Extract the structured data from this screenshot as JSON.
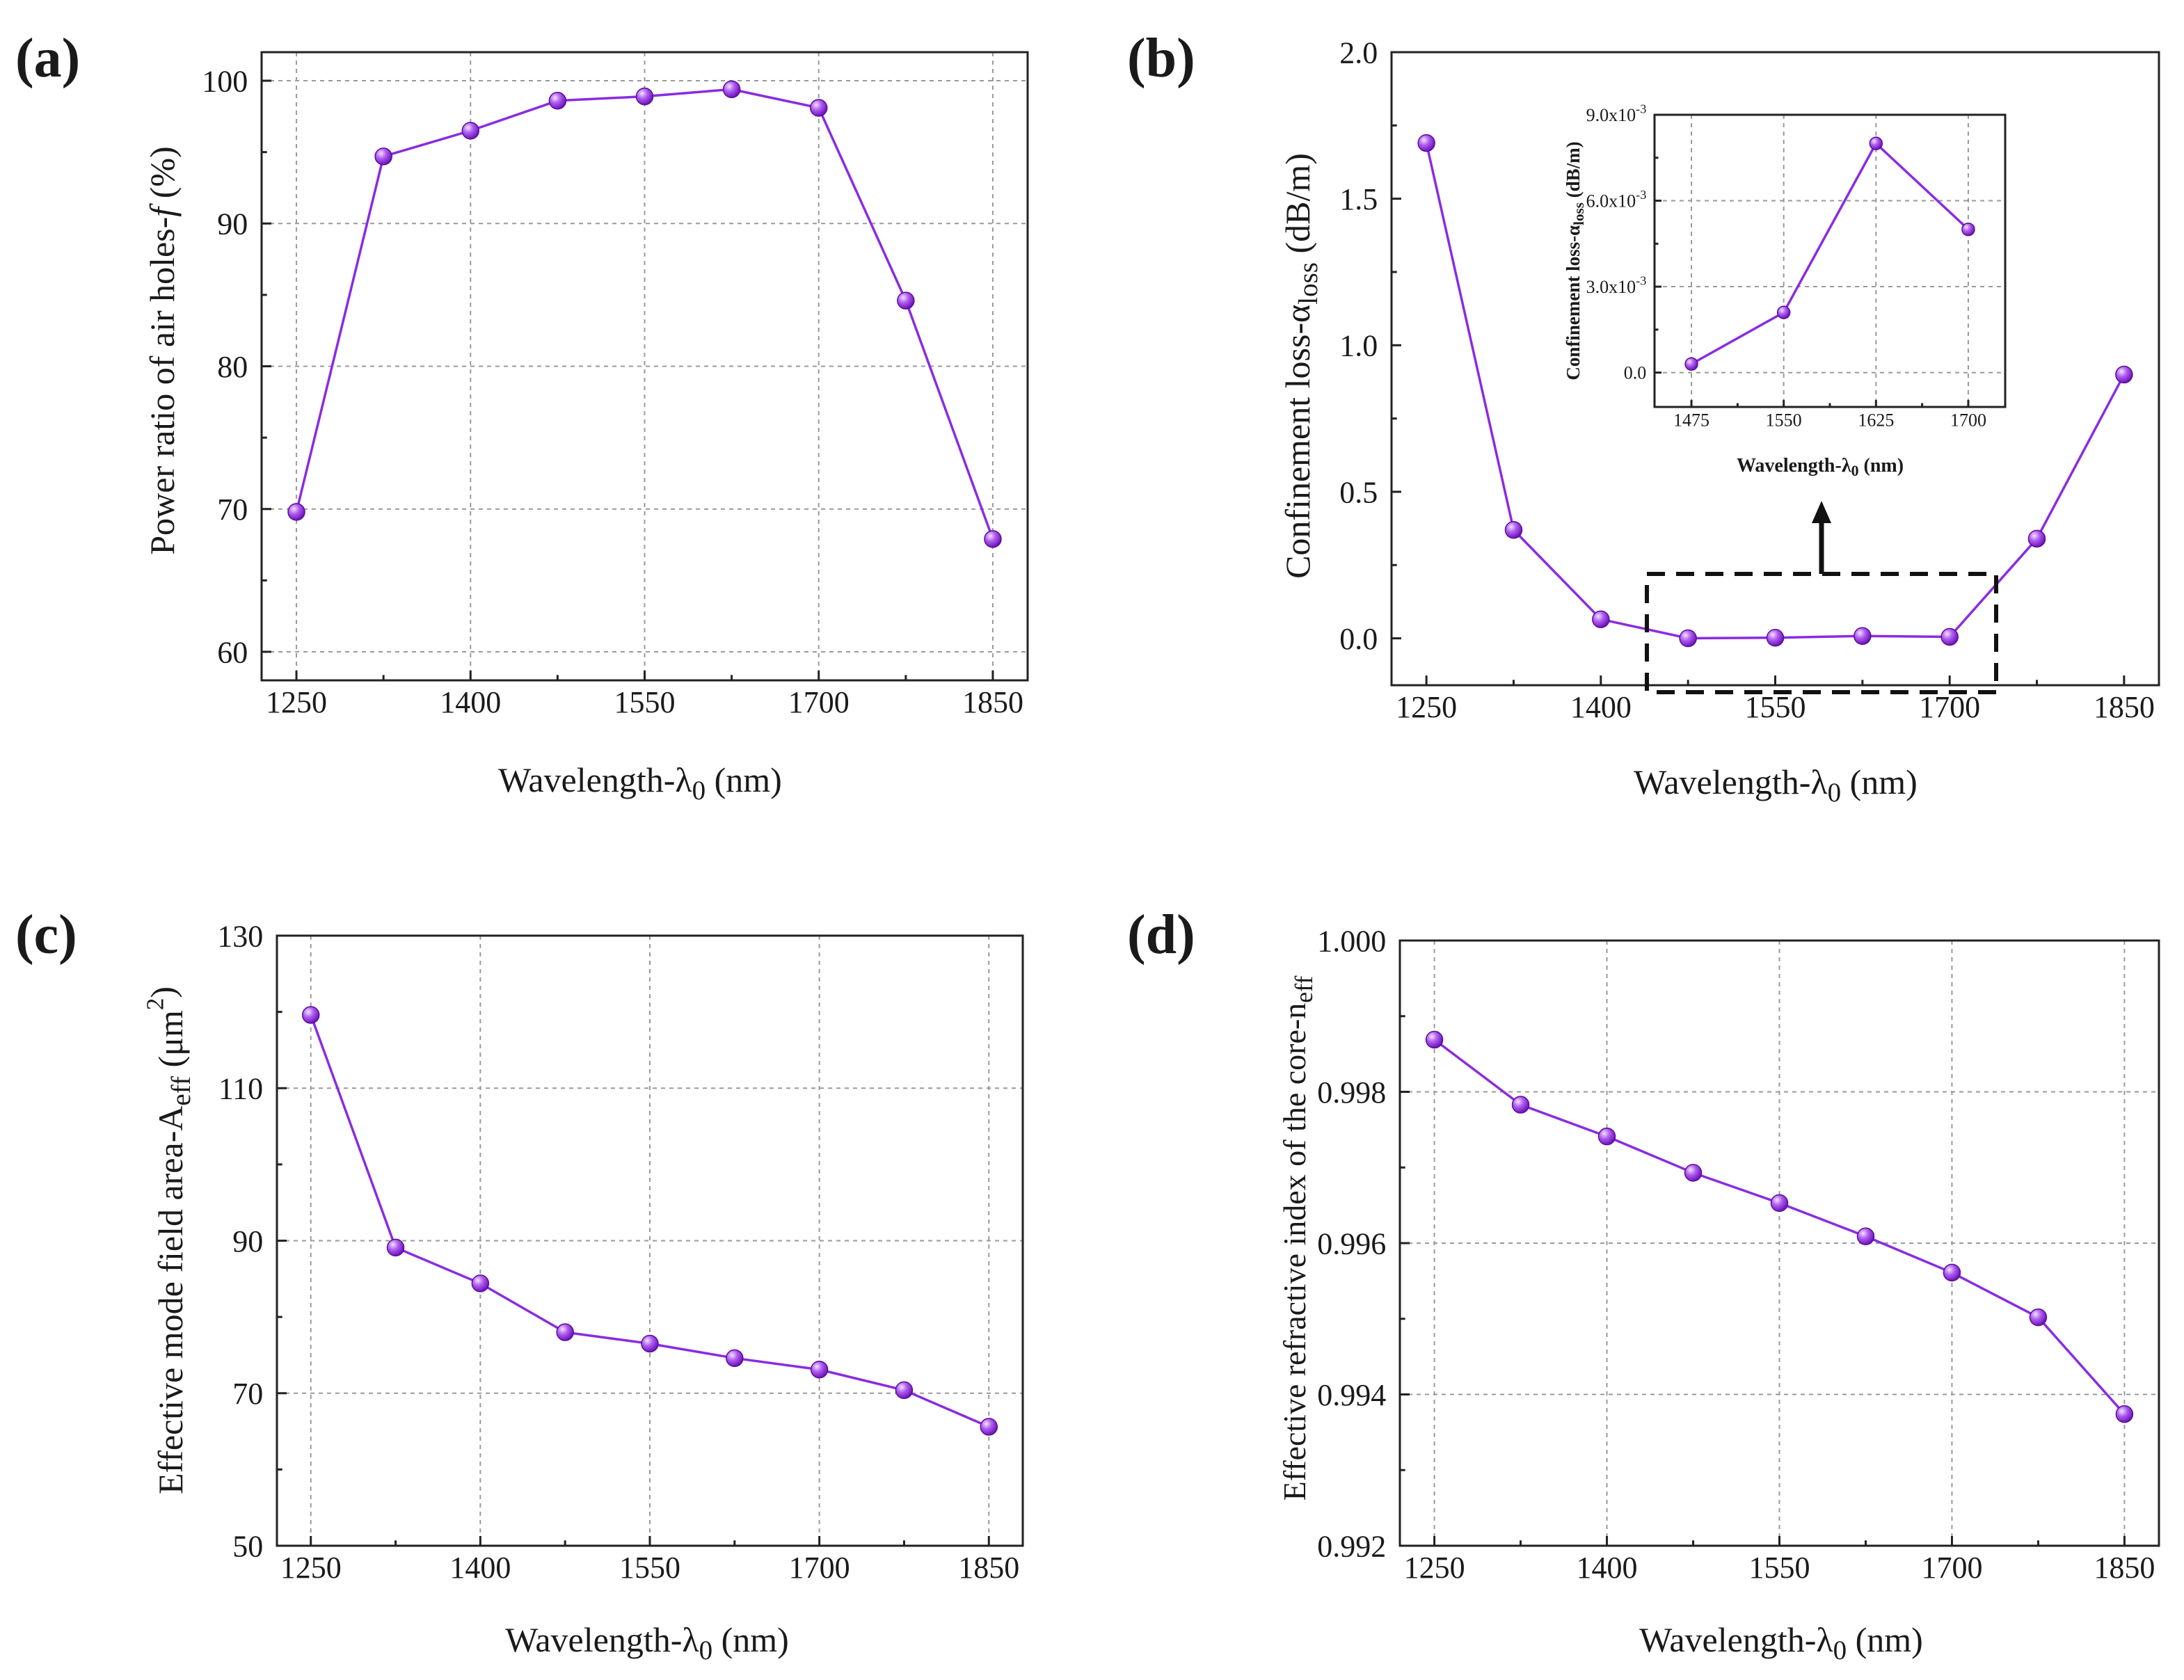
{
  "colors": {
    "line": "#8a2be2",
    "marker": "#b05cf0",
    "marker_highlight": "#f3e3ff",
    "axes": "#222222",
    "grid": "#9a9a9a"
  },
  "chart_data": [
    {
      "id": "a",
      "panel_label": "(a)",
      "type": "line",
      "xlabel": "Wavelength-λ0 (nm)",
      "ylabel": "Power ratio of air holes-f (%)",
      "xlim": [
        1220,
        1880
      ],
      "ylim": [
        58,
        102
      ],
      "xticks": [
        1250,
        1400,
        1550,
        1700,
        1850
      ],
      "xticklabels": [
        "1250",
        "1400",
        "1550",
        "1700",
        "1850"
      ],
      "yticks": [
        60,
        70,
        80,
        90,
        100
      ],
      "yticklabels": [
        "60",
        "70",
        "80",
        "90",
        "100"
      ],
      "x": [
        1250,
        1325,
        1400,
        1475,
        1550,
        1625,
        1700,
        1775,
        1850
      ],
      "y": [
        69.8,
        94.7,
        96.5,
        98.6,
        98.9,
        99.4,
        98.1,
        84.6,
        67.9
      ],
      "grid": true
    },
    {
      "id": "b",
      "panel_label": "(b)",
      "type": "line",
      "xlabel": "Wavelength-λ0 (nm)",
      "ylabel": "Confinement loss-αloss (dB/m)",
      "xlim": [
        1220,
        1880
      ],
      "ylim": [
        -0.16,
        2.0
      ],
      "xticks": [
        1250,
        1400,
        1550,
        1700,
        1850
      ],
      "xticklabels": [
        "1250",
        "1400",
        "1550",
        "1700",
        "1850"
      ],
      "yticks": [
        0.0,
        0.5,
        1.0,
        1.5,
        2.0
      ],
      "yticklabels": [
        "0.0",
        "0.5",
        "1.0",
        "1.5",
        "2.0"
      ],
      "x": [
        1250,
        1325,
        1400,
        1475,
        1550,
        1625,
        1700,
        1775,
        1850
      ],
      "y": [
        1.69,
        0.37,
        0.065,
        0.0003,
        0.0021,
        0.008,
        0.005,
        0.34,
        0.9
      ],
      "grid": false,
      "inset": {
        "type": "line",
        "xlabel": "Wavelength-λ0 (nm)",
        "ylabel": "Confinement loss-αloss (dB/m)",
        "xlim": [
          1445,
          1730
        ],
        "ylim": [
          -0.0012,
          0.009
        ],
        "xticks": [
          1475,
          1550,
          1625,
          1700
        ],
        "xticklabels": [
          "1475",
          "1550",
          "1625",
          "1700"
        ],
        "yticks": [
          0.0,
          0.003,
          0.006,
          0.009
        ],
        "yticklabels": [
          "0.0",
          "3.0x10-3",
          "6.0x10-3",
          "9.0x10-3"
        ],
        "x": [
          1475,
          1550,
          1625,
          1700
        ],
        "y": [
          0.0003,
          0.0021,
          0.008,
          0.005
        ],
        "grid": true
      }
    },
    {
      "id": "c",
      "panel_label": "(c)",
      "type": "line",
      "xlabel": "Wavelength-λ0 (nm)",
      "ylabel": "Effective mode field area-Aeff (μm2)",
      "xlim": [
        1220,
        1880
      ],
      "ylim": [
        50,
        130
      ],
      "xticks": [
        1250,
        1400,
        1550,
        1700,
        1850
      ],
      "xticklabels": [
        "1250",
        "1400",
        "1550",
        "1700",
        "1850"
      ],
      "yticks": [
        50,
        70,
        90,
        110,
        130
      ],
      "yticklabels": [
        "50",
        "70",
        "90",
        "110",
        "130"
      ],
      "x": [
        1250,
        1325,
        1400,
        1475,
        1550,
        1625,
        1700,
        1775,
        1850
      ],
      "y": [
        119.6,
        89.1,
        84.4,
        78.0,
        76.5,
        74.6,
        73.1,
        70.4,
        65.6
      ],
      "grid": true
    },
    {
      "id": "d",
      "panel_label": "(d)",
      "type": "line",
      "xlabel": "Wavelength-λ0 (nm)",
      "ylabel": "Effective refractive index of the core-neff",
      "xlim": [
        1220,
        1880
      ],
      "ylim": [
        0.992,
        1.0
      ],
      "xticks": [
        1250,
        1400,
        1550,
        1700,
        1850
      ],
      "xticklabels": [
        "1250",
        "1400",
        "1550",
        "1700",
        "1850"
      ],
      "yticks": [
        0.992,
        0.994,
        0.996,
        0.998,
        1.0
      ],
      "yticklabels": [
        "0.992",
        "0.994",
        "0.996",
        "0.998",
        "1.000"
      ],
      "x": [
        1250,
        1325,
        1400,
        1475,
        1550,
        1625,
        1700,
        1775,
        1850
      ],
      "y": [
        0.99869,
        0.99783,
        0.99741,
        0.99693,
        0.99653,
        0.99609,
        0.99561,
        0.99502,
        0.99374
      ],
      "grid": true
    }
  ]
}
